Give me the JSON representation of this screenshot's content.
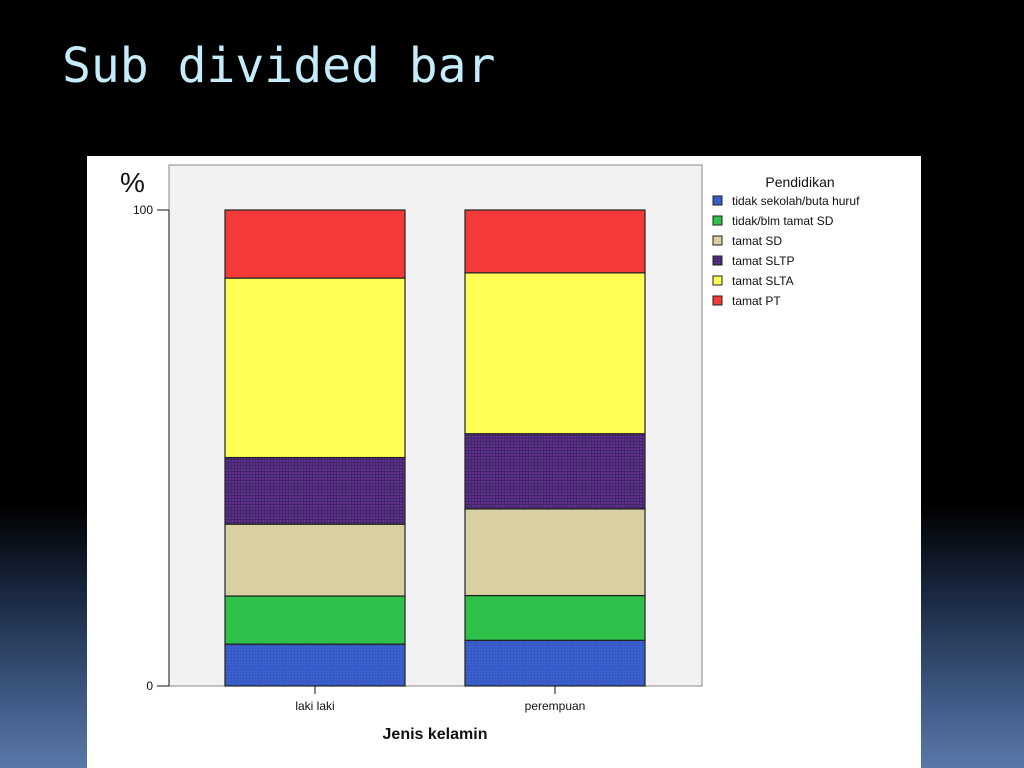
{
  "slide": {
    "title": "Sub divided bar"
  },
  "chart_data": {
    "type": "bar",
    "stacked": true,
    "categories": [
      "laki laki",
      "perempuan"
    ],
    "series": [
      {
        "name": "tidak sekolah/buta huruf",
        "color": "#3a5fcd",
        "values": [
          8.8,
          9.6
        ]
      },
      {
        "name": "tidak/blm tamat SD",
        "color": "#2fc24a",
        "values": [
          10.1,
          9.4
        ]
      },
      {
        "name": "tamat SD",
        "color": "#d8d0a0",
        "values": [
          15.1,
          18.2
        ]
      },
      {
        "name": "tamat SLTP",
        "color": "#6a2c8c",
        "values": [
          14.0,
          15.8
        ]
      },
      {
        "name": "tamat SLTA",
        "color": "#ffff55",
        "values": [
          37.7,
          33.8
        ]
      },
      {
        "name": "tamat PT",
        "color": "#f53a3a",
        "values": [
          14.3,
          13.2
        ]
      }
    ],
    "ylim": [
      0,
      100
    ],
    "yticks": [
      "0",
      "100"
    ],
    "ylabel": "%",
    "xlabel": "Jenis kelamin",
    "legend": {
      "title": "Pendidikan",
      "position": "right"
    },
    "grid": false
  }
}
